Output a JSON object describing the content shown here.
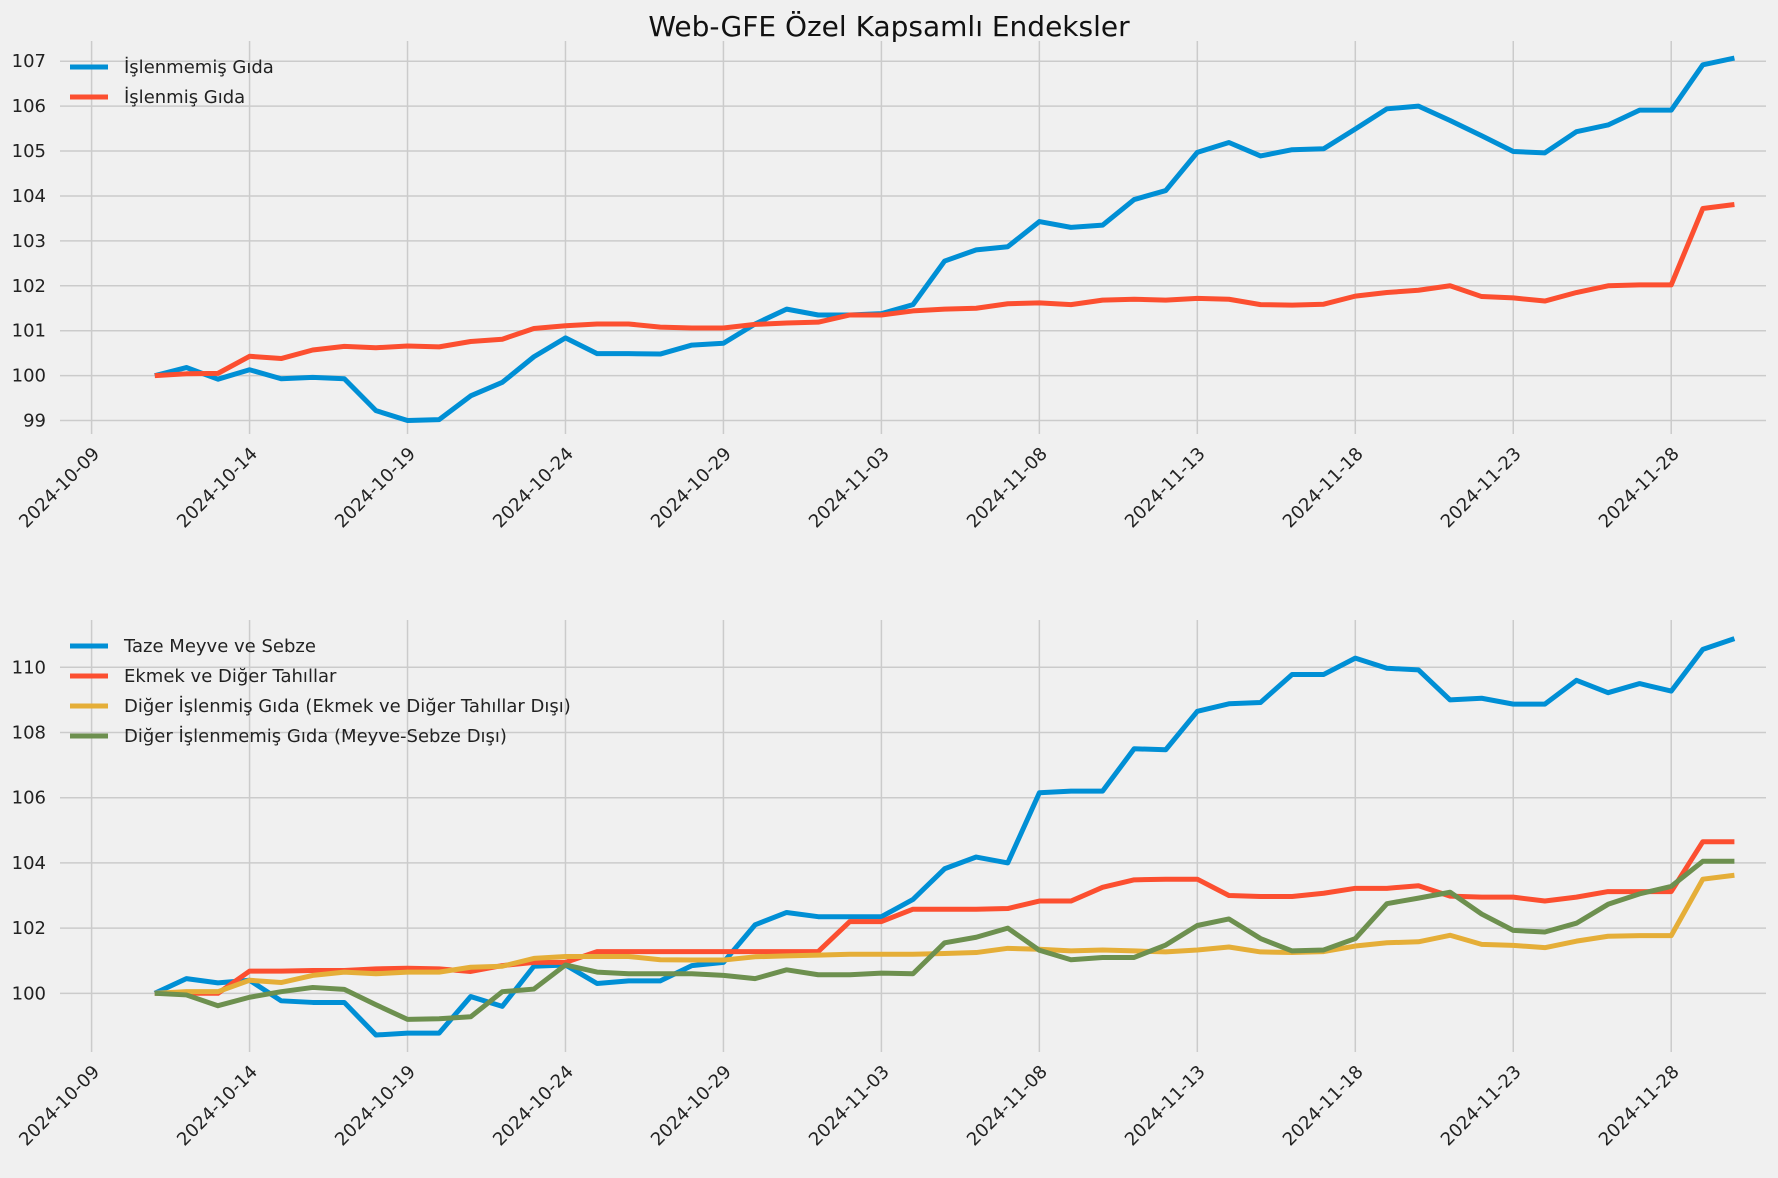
{
  "title": "Web-GFE Özel Kapsamlı Endeksler",
  "chart_data": [
    {
      "type": "line",
      "x_start": "2024-10-11",
      "x_end": "2024-11-29",
      "xlim": [
        "2024-10-08",
        "2024-12-01"
      ],
      "ylim": [
        98.7,
        107.45
      ],
      "x_ticks": [
        "2024-10-09",
        "2024-10-14",
        "2024-10-19",
        "2024-10-24",
        "2024-10-29",
        "2024-11-03",
        "2024-11-08",
        "2024-11-13",
        "2024-11-18",
        "2024-11-23",
        "2024-11-28"
      ],
      "y_ticks": [
        99,
        100,
        101,
        102,
        103,
        104,
        105,
        106,
        107
      ],
      "legend": "top-left",
      "grid": true,
      "series": [
        {
          "name": "İşlenmemiş Gıda",
          "color": "#008fd5",
          "values": [
            100.0,
            100.18,
            99.92,
            100.13,
            99.93,
            99.96,
            99.93,
            99.22,
            99.0,
            99.02,
            99.55,
            99.85,
            100.42,
            100.84,
            100.49,
            100.49,
            100.48,
            100.68,
            100.72,
            101.15,
            101.48,
            101.35,
            101.35,
            101.38,
            101.58,
            102.55,
            102.8,
            102.87,
            103.43,
            103.3,
            103.35,
            103.92,
            104.12,
            104.97,
            105.19,
            104.89,
            105.03,
            105.05,
            105.49,
            105.94,
            106.0,
            105.68,
            105.34,
            104.99,
            104.96,
            105.43,
            105.58,
            105.91,
            105.91,
            106.92,
            107.07
          ]
        },
        {
          "name": "İşlenmiş Gıda",
          "color": "#fc4f30",
          "values": [
            100.0,
            100.04,
            100.05,
            100.43,
            100.38,
            100.57,
            100.65,
            100.62,
            100.66,
            100.64,
            100.76,
            100.81,
            101.05,
            101.11,
            101.15,
            101.15,
            101.08,
            101.06,
            101.06,
            101.14,
            101.17,
            101.19,
            101.35,
            101.35,
            101.44,
            101.48,
            101.5,
            101.6,
            101.62,
            101.58,
            101.68,
            101.7,
            101.68,
            101.72,
            101.7,
            101.58,
            101.57,
            101.59,
            101.77,
            101.85,
            101.9,
            102.0,
            101.76,
            101.73,
            101.66,
            101.85,
            102.0,
            102.02,
            102.02,
            103.72,
            103.81
          ]
        }
      ]
    },
    {
      "type": "line",
      "x_start": "2024-10-11",
      "x_end": "2024-11-29",
      "xlim": [
        "2024-10-08",
        "2024-12-01"
      ],
      "ylim": [
        98.2,
        111.45
      ],
      "x_ticks": [
        "2024-10-09",
        "2024-10-14",
        "2024-10-19",
        "2024-10-24",
        "2024-10-29",
        "2024-11-03",
        "2024-11-08",
        "2024-11-13",
        "2024-11-18",
        "2024-11-23",
        "2024-11-28"
      ],
      "y_ticks": [
        100,
        102,
        104,
        106,
        108,
        110
      ],
      "legend": "top-left",
      "grid": true,
      "series": [
        {
          "name": "Taze Meyve ve Sebze",
          "color": "#008fd5",
          "values": [
            100.0,
            100.45,
            100.32,
            100.4,
            99.77,
            99.72,
            99.72,
            98.72,
            98.78,
            98.78,
            99.9,
            99.6,
            100.83,
            100.87,
            100.3,
            100.38,
            100.38,
            100.85,
            100.95,
            102.1,
            102.48,
            102.35,
            102.35,
            102.35,
            102.88,
            103.82,
            104.18,
            104.0,
            106.15,
            106.2,
            106.2,
            107.5,
            107.47,
            108.65,
            108.88,
            108.92,
            109.78,
            109.78,
            110.28,
            109.97,
            109.92,
            109.0,
            109.05,
            108.87,
            108.87,
            109.6,
            109.22,
            109.5,
            109.27,
            110.55,
            110.88
          ]
        },
        {
          "name": "Ekmek ve Diğer Tahıllar",
          "color": "#fc4f30",
          "values": [
            100.0,
            100.0,
            100.0,
            100.68,
            100.68,
            100.7,
            100.7,
            100.75,
            100.77,
            100.75,
            100.67,
            100.85,
            100.95,
            100.95,
            101.28,
            101.28,
            101.28,
            101.28,
            101.28,
            101.28,
            101.28,
            101.28,
            102.2,
            102.2,
            102.58,
            102.58,
            102.58,
            102.6,
            102.83,
            102.83,
            103.25,
            103.48,
            103.5,
            103.5,
            103.0,
            102.97,
            102.97,
            103.07,
            103.22,
            103.22,
            103.3,
            102.98,
            102.95,
            102.95,
            102.83,
            102.95,
            103.12,
            103.12,
            103.12,
            104.65,
            104.65
          ]
        },
        {
          "name": "Diğer İşlenmiş Gıda (Ekmek ve Diğer Tahıllar Dışı)",
          "color": "#e5ae38",
          "values": [
            100.0,
            100.05,
            100.05,
            100.4,
            100.33,
            100.55,
            100.65,
            100.6,
            100.65,
            100.65,
            100.8,
            100.83,
            101.07,
            101.13,
            101.13,
            101.13,
            101.03,
            101.02,
            101.02,
            101.12,
            101.15,
            101.17,
            101.2,
            101.2,
            101.2,
            101.22,
            101.25,
            101.38,
            101.35,
            101.3,
            101.33,
            101.3,
            101.27,
            101.33,
            101.42,
            101.27,
            101.25,
            101.28,
            101.45,
            101.55,
            101.58,
            101.78,
            101.5,
            101.47,
            101.4,
            101.6,
            101.75,
            101.77,
            101.77,
            103.5,
            103.62
          ]
        },
        {
          "name": "Diğer İşlenmemiş Gıda (Meyve-Sebze Dışı)",
          "color": "#6d904f",
          "values": [
            100.0,
            99.95,
            99.62,
            99.88,
            100.05,
            100.18,
            100.12,
            99.65,
            99.2,
            99.22,
            99.28,
            100.05,
            100.13,
            100.87,
            100.65,
            100.6,
            100.6,
            100.6,
            100.55,
            100.45,
            100.72,
            100.57,
            100.57,
            100.62,
            100.6,
            101.55,
            101.72,
            102.0,
            101.32,
            101.03,
            101.1,
            101.1,
            101.48,
            102.08,
            102.28,
            101.68,
            101.3,
            101.33,
            101.68,
            102.75,
            102.92,
            103.1,
            102.43,
            101.93,
            101.88,
            102.15,
            102.73,
            103.05,
            103.28,
            104.05,
            104.05
          ]
        }
      ]
    }
  ]
}
